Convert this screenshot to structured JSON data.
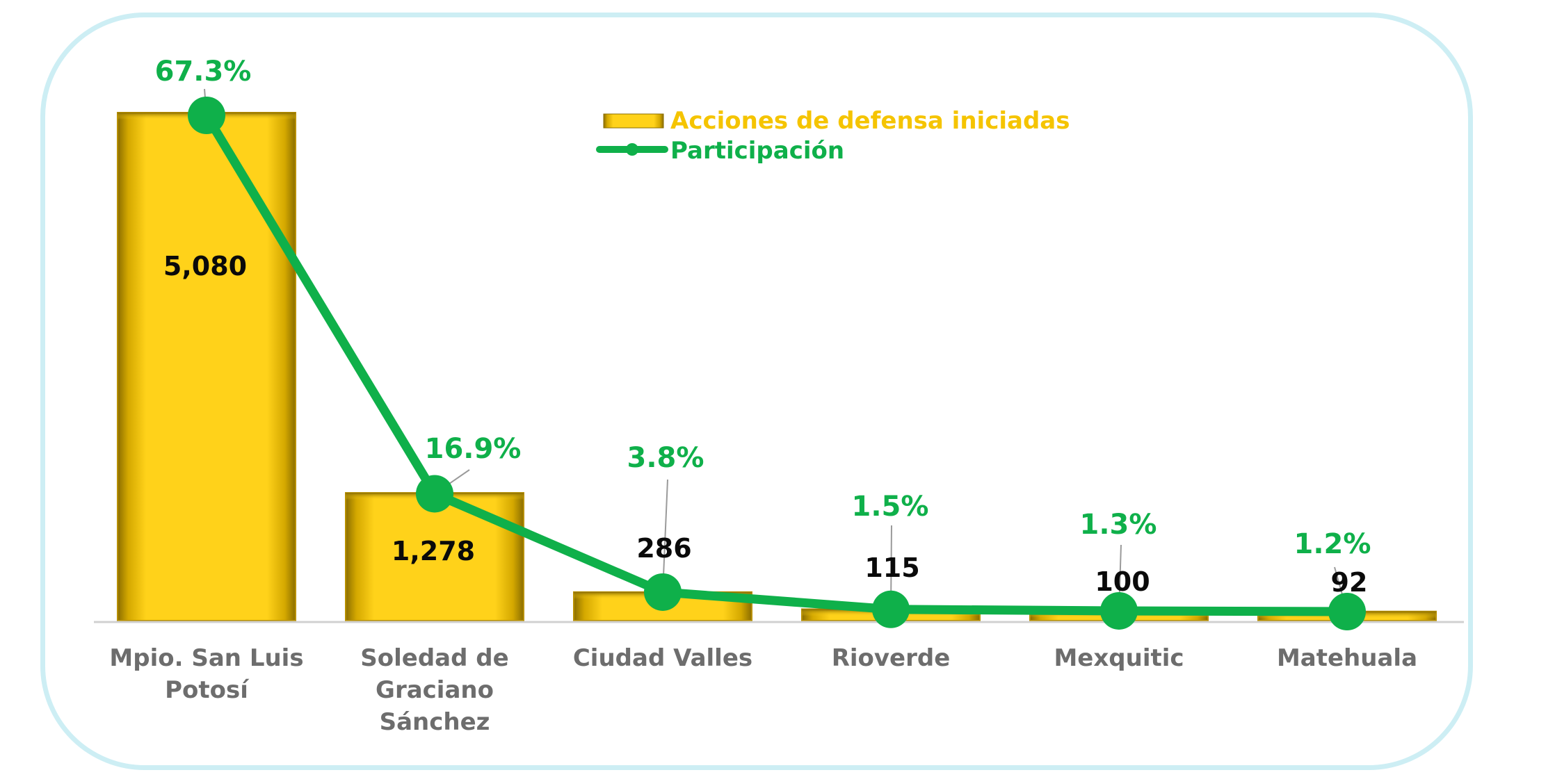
{
  "chart_data": {
    "type": "bar",
    "categories": [
      [
        "Mpio. San Luis",
        "Potosí"
      ],
      [
        "Soledad de",
        "Graciano",
        "Sánchez"
      ],
      [
        "Ciudad Valles"
      ],
      [
        "Rioverde"
      ],
      [
        "Mexquitic"
      ],
      [
        "Matehuala"
      ]
    ],
    "series": [
      {
        "name": "Acciones de defensa iniciadas",
        "kind": "bar",
        "values": [
          5080,
          1278,
          286,
          115,
          100,
          92
        ],
        "labels": [
          "5,080",
          "1,278",
          "286",
          "115",
          "100",
          "92"
        ],
        "color": "#f5c400"
      },
      {
        "name": "Participación",
        "kind": "line",
        "values": [
          67.3,
          16.9,
          3.8,
          1.5,
          1.3,
          1.2
        ],
        "labels": [
          "67.3%",
          "16.9%",
          "3.8%",
          "1.5%",
          "1.3%",
          "1.2%"
        ],
        "color": "#0fb04a"
      }
    ],
    "legend": {
      "bar_label": "Acciones de defensa iniciadas",
      "line_label": "Participación",
      "bar_text_color": "#f5c400",
      "line_text_color": "#0fb04a",
      "placement": "top-center"
    },
    "colors": {
      "bar_fill": "#ffd21a",
      "bar_edge": "#b89000",
      "line": "#0fb04a",
      "frame_border": "#cdeef4",
      "axis_line": "#d0d0d0"
    },
    "grid": false,
    "y_axis_visible": false
  }
}
